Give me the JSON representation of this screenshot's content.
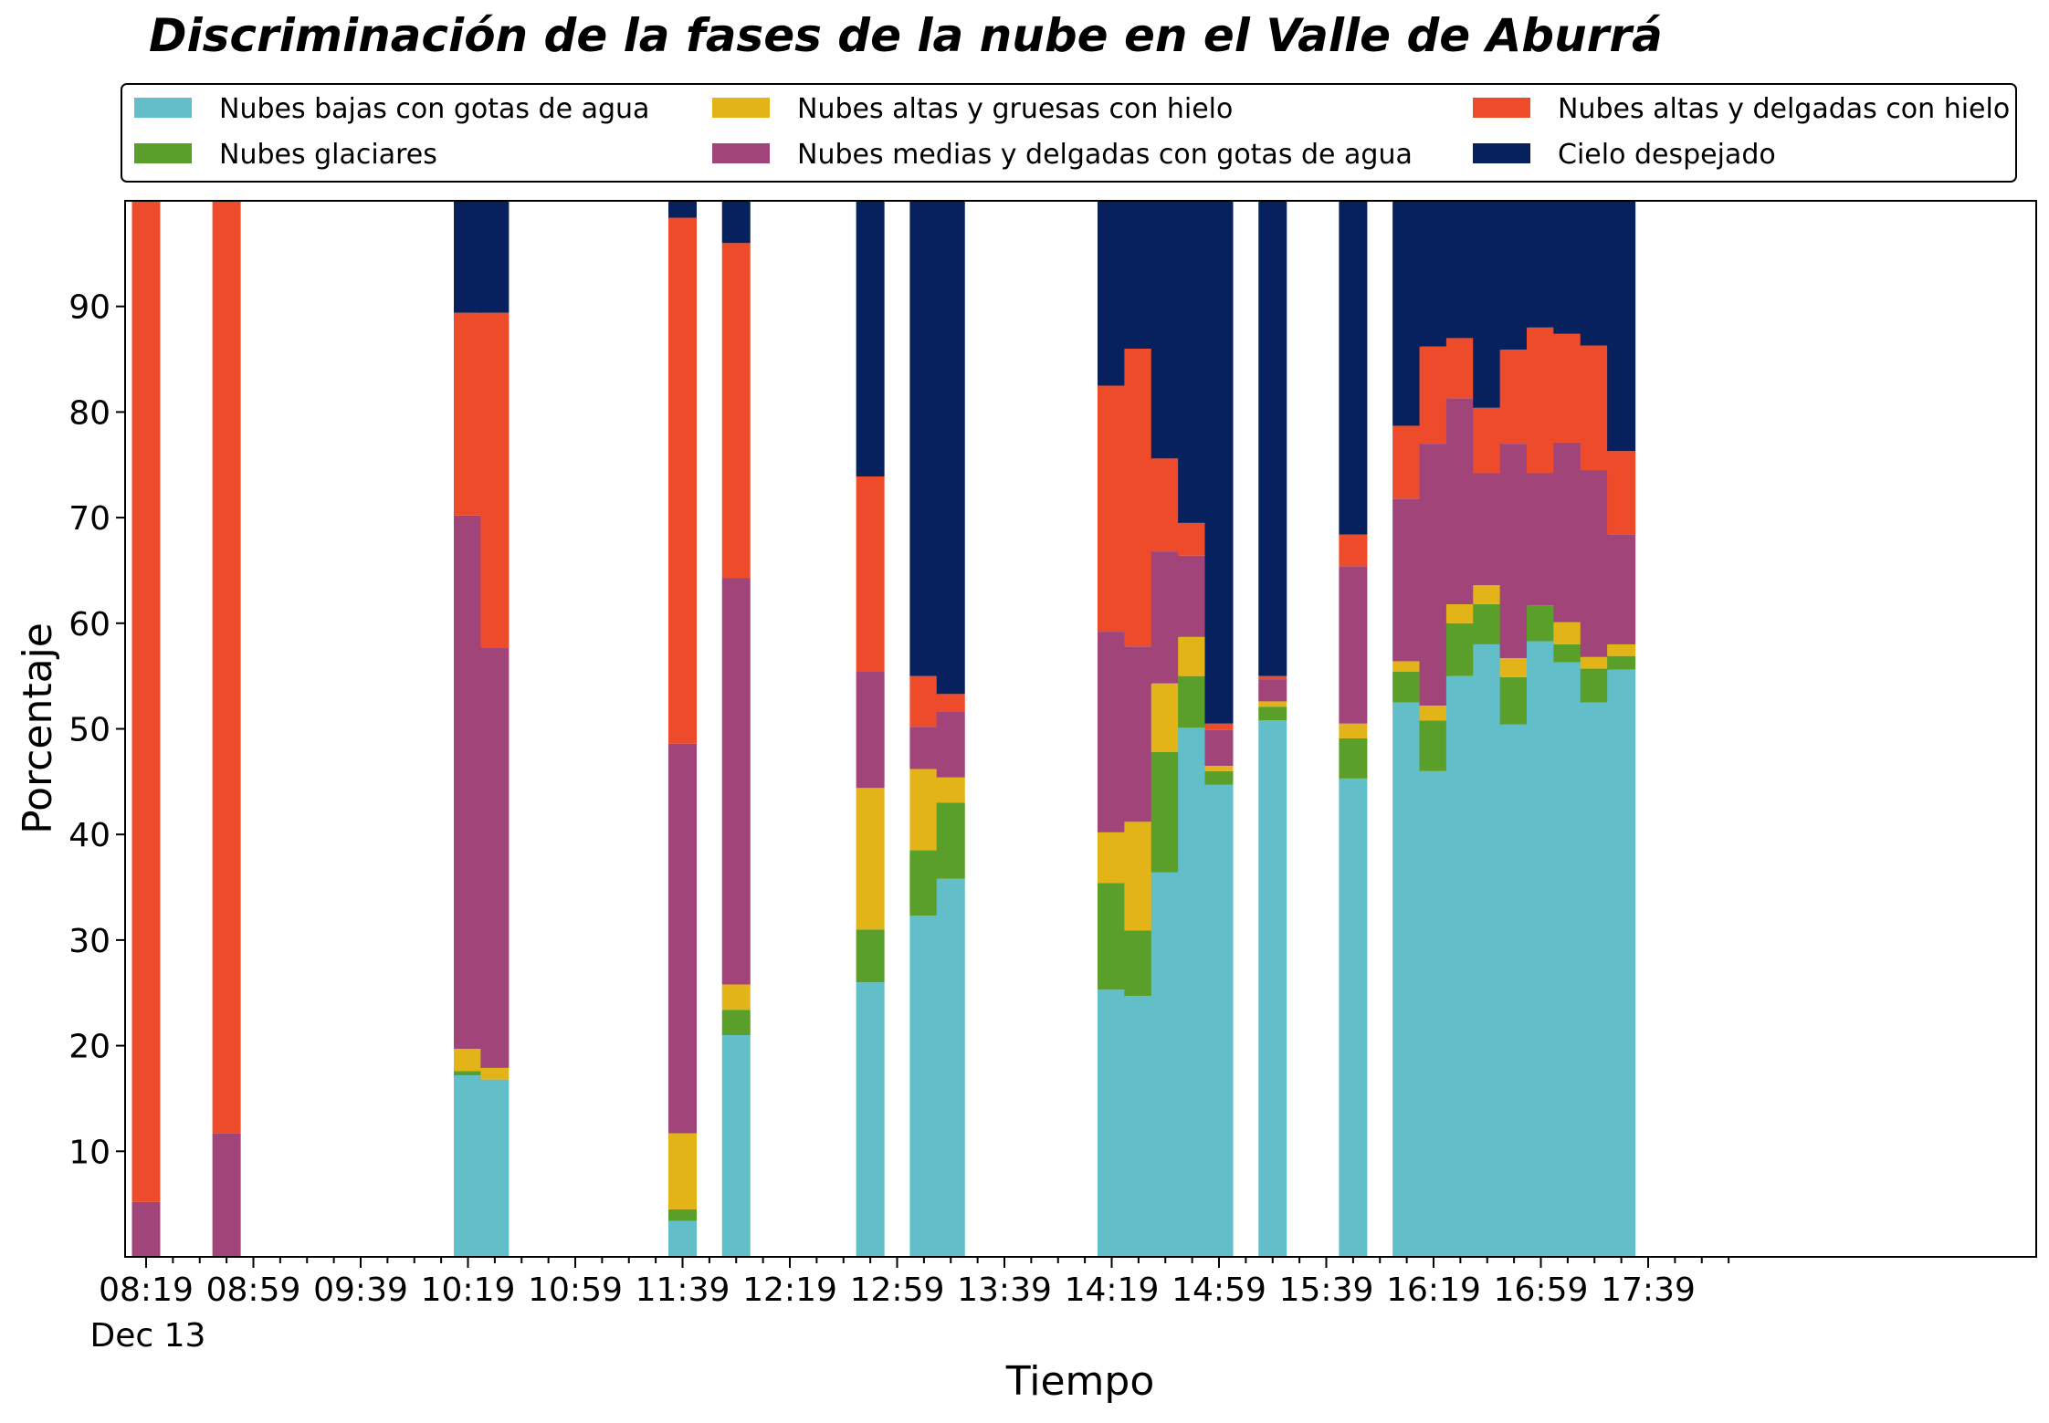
{
  "chart_data": {
    "type": "bar",
    "stacked": true,
    "title": "Discriminación de la fases de la nube en el Valle de Aburrá",
    "xlabel": "Tiempo",
    "ylabel": "Porcentaje",
    "date_label": "Dec 13",
    "x_tick_labels": [
      "08:19",
      "08:59",
      "09:39",
      "10:19",
      "10:59",
      "11:39",
      "12:19",
      "12:59",
      "13:39",
      "14:19",
      "14:59",
      "15:39",
      "16:19",
      "16:59",
      "17:39"
    ],
    "y_ticks": [
      10,
      20,
      30,
      40,
      50,
      60,
      70,
      80,
      90
    ],
    "ylim": [
      0,
      100
    ],
    "legend_position": "top, 3 columns",
    "grid": false,
    "x": [
      "08:19",
      "08:49",
      "10:19",
      "10:29",
      "11:39",
      "11:59",
      "12:49",
      "13:09",
      "13:19",
      "14:19",
      "14:29",
      "14:39",
      "14:49",
      "14:59",
      "15:19",
      "15:49",
      "16:09",
      "16:19",
      "16:29",
      "16:39",
      "16:49",
      "16:59",
      "17:09",
      "17:19",
      "17:29"
    ],
    "series": [
      {
        "name": "Nubes bajas con gotas de agua",
        "color": "#62bec8",
        "values": [
          0,
          0,
          17.2,
          16.8,
          3.4,
          21.0,
          26.0,
          32.3,
          35.8,
          25.3,
          24.7,
          36.4,
          50.1,
          44.7,
          50.8,
          45.3,
          52.5,
          46.0,
          55.0,
          58.0,
          50.4,
          58.3,
          56.3,
          52.5,
          55.6
        ]
      },
      {
        "name": "Nubes glaciares",
        "color": "#5a9f2a",
        "values": [
          0,
          0,
          0.4,
          0,
          1.1,
          2.4,
          5.0,
          6.2,
          7.2,
          10.1,
          6.2,
          11.4,
          4.9,
          1.3,
          1.3,
          3.8,
          2.9,
          4.8,
          5.0,
          3.8,
          4.5,
          3.4,
          1.7,
          3.2,
          1.3
        ]
      },
      {
        "name": "Nubes altas y gruesas con hielo",
        "color": "#e3b418",
        "values": [
          0,
          0,
          2.1,
          1.1,
          7.2,
          2.4,
          13.4,
          7.7,
          2.4,
          4.8,
          10.3,
          6.5,
          3.7,
          0.5,
          0.5,
          1.4,
          1.0,
          1.4,
          1.8,
          1.8,
          1.8,
          0,
          2.1,
          1.1,
          1.1
        ]
      },
      {
        "name": "Nubes medias y delgadas con gotas de agua",
        "color": "#a04479",
        "values": [
          5.2,
          11.7,
          50.5,
          39.8,
          36.9,
          38.5,
          11.0,
          4.0,
          6.2,
          19.0,
          16.6,
          12.5,
          7.7,
          3.4,
          2.1,
          14.9,
          15.4,
          24.8,
          19.5,
          10.6,
          20.3,
          12.5,
          17.0,
          17.7,
          10.4
        ]
      },
      {
        "name": "Nubes altas y delgadas con hielo",
        "color": "#ee4b2b",
        "values": [
          94.8,
          88.3,
          19.2,
          31.7,
          49.8,
          31.7,
          18.5,
          4.8,
          1.7,
          23.3,
          28.2,
          8.8,
          3.1,
          0.6,
          0.3,
          3.0,
          6.9,
          9.2,
          5.7,
          6.2,
          8.9,
          13.8,
          10.3,
          11.8,
          7.9
        ]
      },
      {
        "name": "Cielo despejado",
        "color": "#07215e",
        "values": [
          0,
          0,
          10.6,
          10.6,
          1.6,
          4.0,
          26.1,
          45.0,
          46.7,
          17.5,
          14.0,
          24.4,
          30.5,
          49.5,
          45.0,
          31.6,
          21.3,
          13.8,
          13.0,
          19.6,
          14.1,
          12.0,
          12.6,
          13.7,
          23.7
        ]
      }
    ]
  }
}
